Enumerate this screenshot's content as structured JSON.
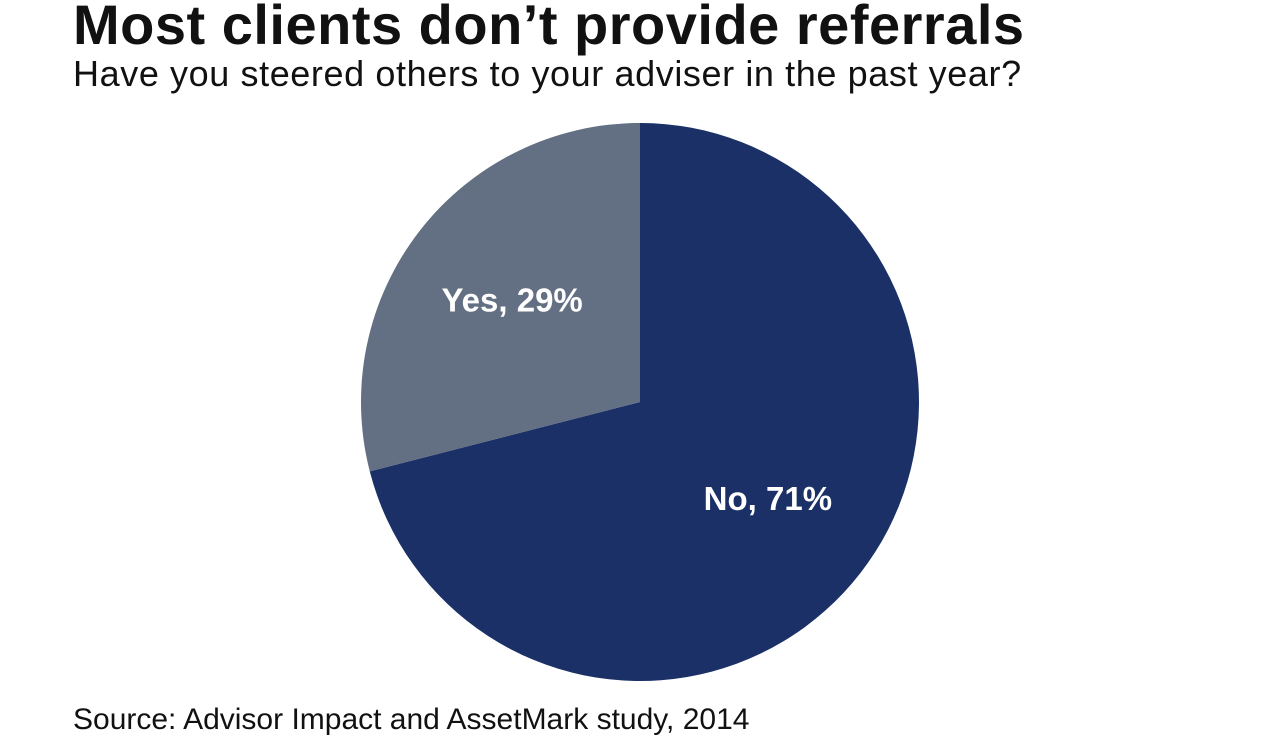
{
  "header": {
    "title": "Most clients don’t provide referrals",
    "subtitle": "Have you steered others to your adviser in the past year?"
  },
  "footer": {
    "source": "Source: Advisor Impact and AssetMark study, 2014"
  },
  "chart_data": {
    "type": "pie",
    "title": "Most clients don’t provide referrals",
    "subtitle": "Have you steered others to your adviser in the past year?",
    "slices": [
      {
        "label": "No, 71%",
        "category": "No",
        "value": 71,
        "color": "#1a3066"
      },
      {
        "label": "Yes, 29%",
        "category": "Yes",
        "value": 29,
        "color": "#637083"
      }
    ],
    "start_angle_deg": 0,
    "direction": "clockwise",
    "legend": "none"
  }
}
